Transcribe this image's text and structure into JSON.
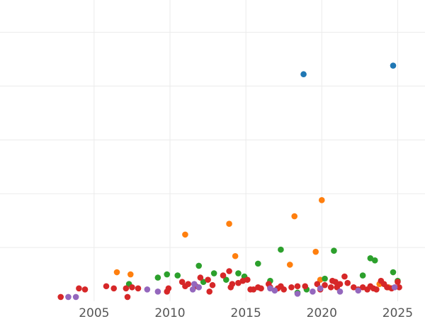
{
  "chart_data": {
    "type": "scatter",
    "title": "",
    "xlabel": "",
    "ylabel": "",
    "xlim": [
      1998.8,
      2026.8
    ],
    "ylim": [
      0,
      28
    ],
    "grid": true,
    "x_ticks": [
      2005,
      2010,
      2015,
      2020,
      2025
    ],
    "x_tick_labels": [
      "2005",
      "2010",
      "2015",
      "2020",
      "2025"
    ],
    "y_gridlines": [
      5,
      10,
      15,
      20,
      25
    ],
    "series": [
      {
        "color": "#1f77b4",
        "points": [
          [
            2018.8,
            21.1
          ],
          [
            2024.7,
            21.9
          ]
        ]
      },
      {
        "color": "#ff7f0e",
        "points": [
          [
            2006.5,
            2.7
          ],
          [
            2007.4,
            2.5
          ],
          [
            2011.0,
            6.2
          ],
          [
            2013.9,
            7.2
          ],
          [
            2014.3,
            4.2
          ],
          [
            2017.9,
            3.4
          ],
          [
            2018.2,
            7.9
          ],
          [
            2019.6,
            4.6
          ],
          [
            2019.9,
            2.0
          ],
          [
            2020.0,
            9.4
          ],
          [
            2023.8,
            1.6
          ],
          [
            2024.4,
            1.3
          ]
        ]
      },
      {
        "color": "#2ca02c",
        "points": [
          [
            2007.3,
            1.6
          ],
          [
            2009.2,
            2.2
          ],
          [
            2009.8,
            2.5
          ],
          [
            2010.5,
            2.4
          ],
          [
            2011.9,
            3.3
          ],
          [
            2012.2,
            1.8
          ],
          [
            2012.9,
            2.6
          ],
          [
            2013.7,
            2.0
          ],
          [
            2014.5,
            2.6
          ],
          [
            2014.9,
            2.3
          ],
          [
            2015.8,
            3.5
          ],
          [
            2016.6,
            1.9
          ],
          [
            2017.3,
            4.8
          ],
          [
            2018.4,
            0.8
          ],
          [
            2019.0,
            1.1
          ],
          [
            2020.2,
            2.1
          ],
          [
            2020.8,
            4.7
          ],
          [
            2022.7,
            2.4
          ],
          [
            2023.2,
            4.0
          ],
          [
            2023.5,
            3.8
          ],
          [
            2024.7,
            2.7
          ],
          [
            2025.0,
            1.9
          ]
        ]
      },
      {
        "color": "#d62728",
        "points": [
          [
            2002.8,
            0.4
          ],
          [
            2004.0,
            1.2
          ],
          [
            2004.4,
            1.1
          ],
          [
            2005.8,
            1.4
          ],
          [
            2006.3,
            1.2
          ],
          [
            2007.1,
            1.2
          ],
          [
            2007.2,
            0.4
          ],
          [
            2007.5,
            1.3
          ],
          [
            2007.9,
            1.2
          ],
          [
            2009.8,
            0.9
          ],
          [
            2009.9,
            1.2
          ],
          [
            2010.8,
            1.8
          ],
          [
            2011.0,
            1.4
          ],
          [
            2011.2,
            1.6
          ],
          [
            2011.7,
            1.4
          ],
          [
            2012.0,
            2.2
          ],
          [
            2012.5,
            2.0
          ],
          [
            2012.6,
            0.9
          ],
          [
            2012.8,
            1.5
          ],
          [
            2013.5,
            2.4
          ],
          [
            2013.9,
            2.8
          ],
          [
            2014.0,
            1.3
          ],
          [
            2014.1,
            1.6
          ],
          [
            2014.5,
            1.7
          ],
          [
            2014.8,
            1.9
          ],
          [
            2015.1,
            2.0
          ],
          [
            2015.3,
            1.1
          ],
          [
            2015.5,
            1.1
          ],
          [
            2015.8,
            1.3
          ],
          [
            2016.0,
            1.2
          ],
          [
            2016.5,
            1.6
          ],
          [
            2016.6,
            1.3
          ],
          [
            2017.1,
            1.2
          ],
          [
            2017.3,
            1.4
          ],
          [
            2017.5,
            1.1
          ],
          [
            2018.0,
            1.3
          ],
          [
            2018.4,
            1.4
          ],
          [
            2018.9,
            1.4
          ],
          [
            2019.7,
            1.6
          ],
          [
            2019.9,
            1.1
          ],
          [
            2020.2,
            1.5
          ],
          [
            2020.6,
            1.3
          ],
          [
            2020.7,
            1.9
          ],
          [
            2020.9,
            1.8
          ],
          [
            2021.0,
            1.3
          ],
          [
            2021.2,
            1.6
          ],
          [
            2021.5,
            2.3
          ],
          [
            2021.7,
            1.7
          ],
          [
            2022.1,
            1.3
          ],
          [
            2022.4,
            1.1
          ],
          [
            2022.7,
            1.3
          ],
          [
            2023.0,
            1.1
          ],
          [
            2023.2,
            1.4
          ],
          [
            2023.4,
            1.2
          ],
          [
            2023.6,
            1.1
          ],
          [
            2023.9,
            1.9
          ],
          [
            2024.1,
            1.6
          ],
          [
            2024.3,
            1.3
          ],
          [
            2024.6,
            1.2
          ],
          [
            2025.0,
            1.8
          ],
          [
            2025.1,
            1.3
          ]
        ]
      },
      {
        "color": "#9467bd",
        "points": [
          [
            2003.3,
            0.4
          ],
          [
            2003.8,
            0.4
          ],
          [
            2008.5,
            1.1
          ],
          [
            2009.2,
            0.9
          ],
          [
            2011.5,
            1.1
          ],
          [
            2011.6,
            1.6
          ],
          [
            2011.9,
            1.3
          ],
          [
            2016.6,
            1.2
          ],
          [
            2016.9,
            1.0
          ],
          [
            2018.4,
            0.7
          ],
          [
            2019.4,
            0.9
          ],
          [
            2019.9,
            1.2
          ],
          [
            2021.2,
            0.9
          ],
          [
            2022.4,
            1.0
          ],
          [
            2024.8,
            1.3
          ]
        ]
      }
    ]
  }
}
